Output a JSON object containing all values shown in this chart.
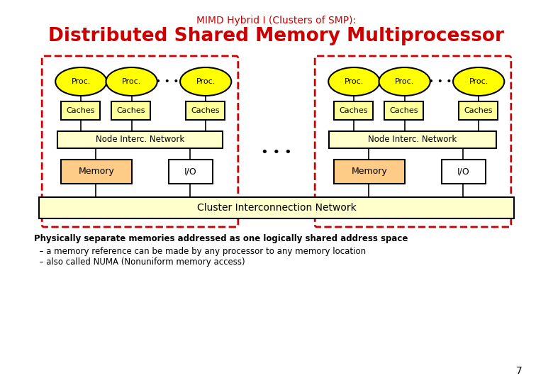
{
  "title_small": "MIMD Hybrid I (Clusters of SMP):",
  "title_large": "Distributed Shared Memory Multiprocessor",
  "title_color": "#cc0000",
  "bg_color": "#ffffff",
  "node_border_color": "#cc0000",
  "proc_fill": "#ffff00",
  "proc_border": "#000000",
  "cache_fill": "#ffff99",
  "cache_border": "#000000",
  "network_fill": "#ffffcc",
  "network_border": "#000000",
  "memory_fill": "#ffcc88",
  "memory_border": "#000000",
  "io_fill": "#ffffff",
  "io_border": "#000000",
  "cluster_fill": "#ffffcc",
  "cluster_border": "#000000",
  "bottom_text_bold": "Physically separate memories addressed as one logically shared address space",
  "bottom_text_normal": "  – a memory reference can be made by any processor to any memory location\n  – also called NUMA (Nonuniform memory access)",
  "page_number": "7"
}
